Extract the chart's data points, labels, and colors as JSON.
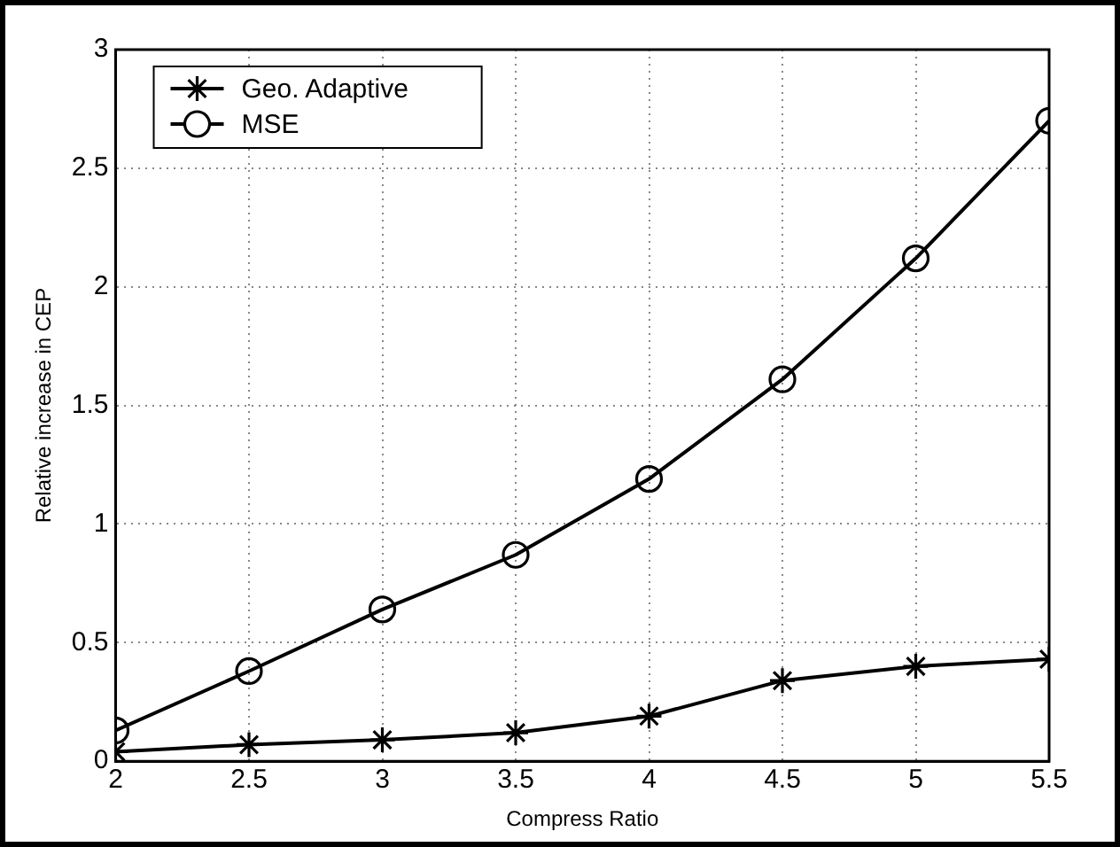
{
  "chart_data": {
    "type": "line",
    "xlabel": "Compress Ratio",
    "ylabel": "Relative increase in CEP",
    "x": [
      2,
      2.5,
      3,
      3.5,
      4,
      4.5,
      5,
      5.5
    ],
    "series": [
      {
        "name": "Geo. Adaptive",
        "color": "#000000",
        "marker": "cross",
        "values": [
          0.04,
          0.07,
          0.09,
          0.12,
          0.19,
          0.34,
          0.4,
          0.43
        ]
      },
      {
        "name": "MSE",
        "color": "#000000",
        "marker": "circle",
        "values": [
          0.13,
          0.38,
          0.64,
          0.87,
          1.19,
          1.61,
          2.12,
          2.7
        ]
      }
    ],
    "xlim": [
      2,
      5.5
    ],
    "xticks": [
      2,
      2.5,
      3,
      3.5,
      4,
      4.5,
      5,
      5.5
    ],
    "ylim": [
      0,
      3
    ],
    "yticks": [
      0,
      0.5,
      1,
      1.5,
      2,
      2.5,
      3
    ],
    "grid": true,
    "legend": "top left",
    "line_style": "solid"
  }
}
